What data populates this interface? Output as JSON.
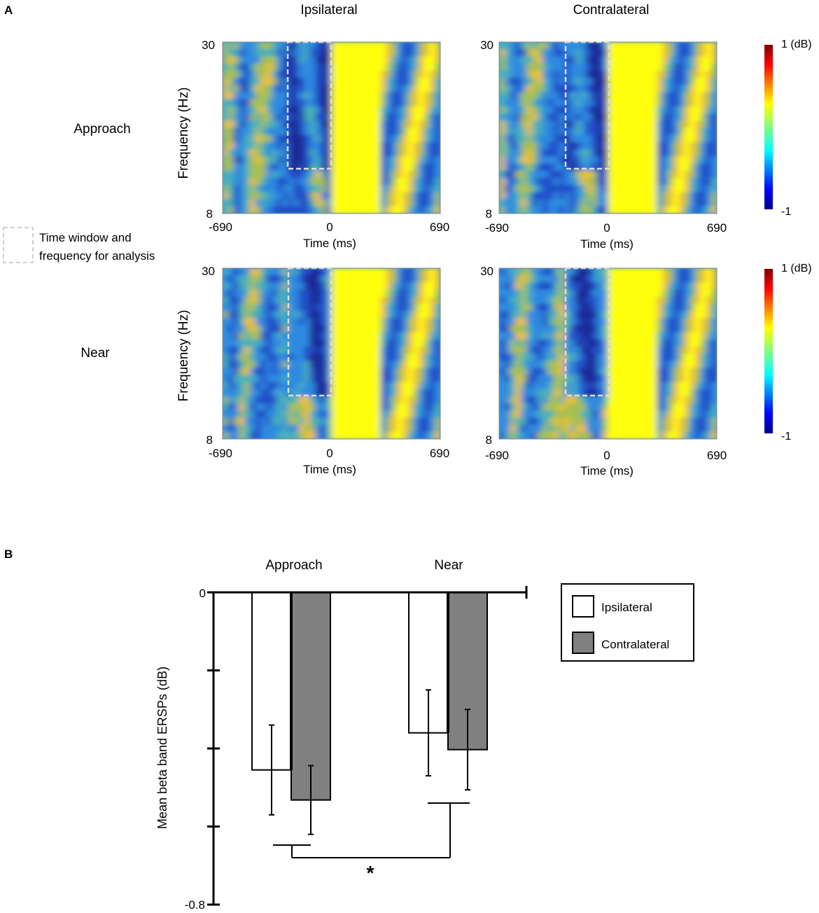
{
  "panel_a": {
    "label": "A",
    "column_titles": [
      "Ipsilateral",
      "Contralateral"
    ],
    "row_titles": [
      "Approach",
      "Near"
    ],
    "ylabel": "Frequency (Hz)",
    "xlabel": "Time (ms)",
    "x_ticks": [
      "-690",
      "0",
      "690"
    ],
    "y_ticks": [
      "30",
      "8"
    ],
    "colorbar_max": "1 (dB)",
    "colorbar_min": "-1",
    "legend_text": [
      "Time window and",
      "frequency for analysis"
    ]
  },
  "panel_b": {
    "label": "B",
    "group_labels": [
      "Approach",
      "Near"
    ],
    "ylabel": "Mean beta band ERSPs (dB)",
    "ytick_top": "0",
    "ytick_bottom": "-0.8",
    "legend": [
      "Ipsilateral",
      "Contralateral"
    ],
    "significance": "*"
  },
  "colors": {
    "contralateral_bar": "#808080",
    "ipsilateral_bar": "#ffffff",
    "axis": "#000000",
    "dashed_box": "#d8d8d8"
  },
  "chart_data": [
    {
      "type": "heatmap",
      "title": "Ipsilateral / Approach",
      "xlabel": "Time (ms)",
      "ylabel": "Frequency (Hz)",
      "xlim": [
        -690,
        690
      ],
      "ylim": [
        8,
        30
      ],
      "color_range_db": [
        -1,
        1
      ],
      "analysis_window": {
        "time_ms": [
          -250,
          0
        ],
        "freq_hz": [
          13,
          30
        ]
      }
    },
    {
      "type": "heatmap",
      "title": "Contralateral / Approach",
      "xlabel": "Time (ms)",
      "ylabel": "Frequency (Hz)",
      "xlim": [
        -690,
        690
      ],
      "ylim": [
        8,
        30
      ],
      "color_range_db": [
        -1,
        1
      ],
      "analysis_window": {
        "time_ms": [
          -250,
          0
        ],
        "freq_hz": [
          13,
          30
        ]
      }
    },
    {
      "type": "heatmap",
      "title": "Ipsilateral / Near",
      "xlabel": "Time (ms)",
      "ylabel": "Frequency (Hz)",
      "xlim": [
        -690,
        690
      ],
      "ylim": [
        8,
        30
      ],
      "color_range_db": [
        -1,
        1
      ],
      "analysis_window": {
        "time_ms": [
          -250,
          0
        ],
        "freq_hz": [
          13,
          30
        ]
      }
    },
    {
      "type": "heatmap",
      "title": "Contralateral / Near",
      "xlabel": "Time (ms)",
      "ylabel": "Frequency (Hz)",
      "xlim": [
        -690,
        690
      ],
      "ylim": [
        8,
        30
      ],
      "color_range_db": [
        -1,
        1
      ],
      "analysis_window": {
        "time_ms": [
          -250,
          0
        ],
        "freq_hz": [
          13,
          30
        ]
      }
    },
    {
      "type": "bar",
      "categories": [
        "Approach",
        "Near"
      ],
      "ylabel": "Mean beta band ERSPs (dB)",
      "ylim": [
        -0.8,
        0
      ],
      "series": [
        {
          "name": "Ipsilateral",
          "values": [
            -0.455,
            -0.36
          ],
          "errors": [
            0.115,
            0.11
          ]
        },
        {
          "name": "Contralateral",
          "values": [
            -0.532,
            -0.403
          ],
          "errors": [
            0.088,
            0.103
          ]
        }
      ],
      "significance": {
        "label": "*",
        "between": [
          "Approach",
          "Near"
        ]
      }
    }
  ]
}
